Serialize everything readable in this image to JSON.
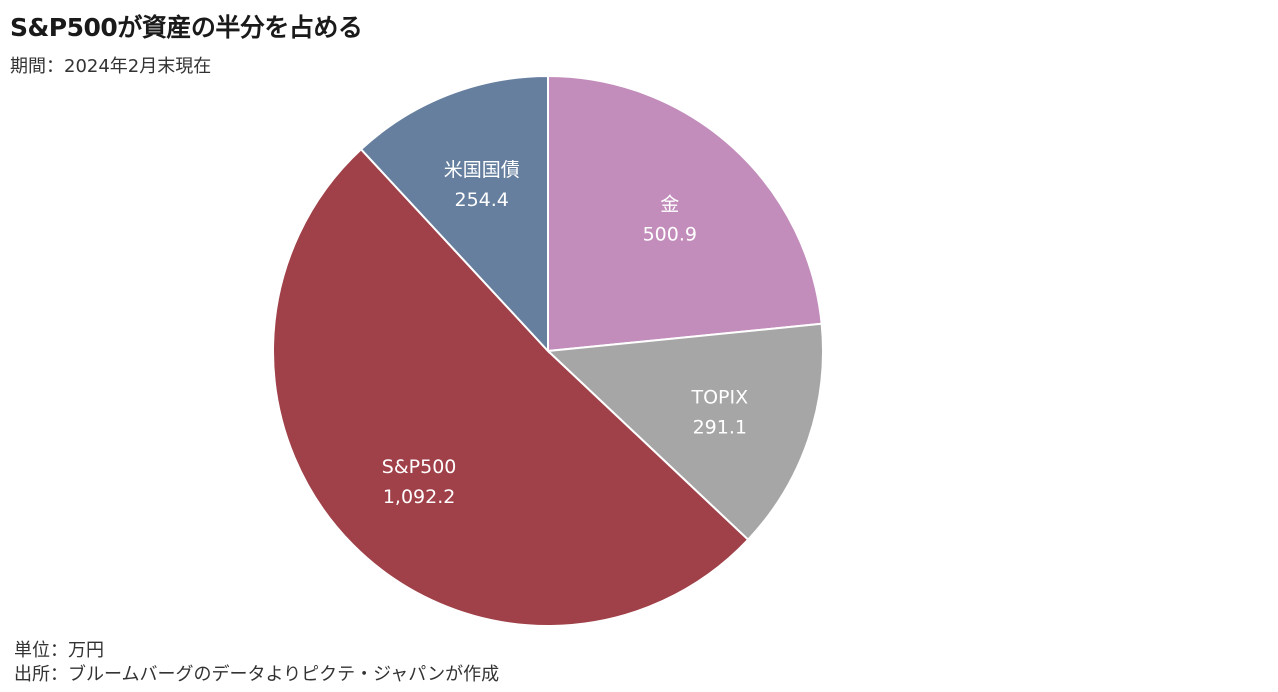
{
  "header": {
    "title": "S&P500が資産の半分を占める",
    "subtitle": "期間：2024年2月末現在"
  },
  "footer": {
    "unit": "単位：万円",
    "source": "出所：ブルームバーグのデータよりピクテ・ジャパンが作成"
  },
  "chart_data": {
    "type": "pie",
    "title": "S&P500が資産の半分を占める",
    "start_angle": "12 o'clock",
    "direction": "clockwise",
    "slices": [
      {
        "label": "金",
        "value": 500.9,
        "value_label": "500.9",
        "color": "#c28cbb"
      },
      {
        "label": "TOPIX",
        "value": 291.1,
        "value_label": "291.1",
        "color": "#a6a6a6"
      },
      {
        "label": "S&P500",
        "value": 1092.2,
        "value_label": "1,092.2",
        "color": "#a04048"
      },
      {
        "label": "米国国債",
        "value": 254.4,
        "value_label": "254.4",
        "color": "#667f9f"
      }
    ]
  }
}
